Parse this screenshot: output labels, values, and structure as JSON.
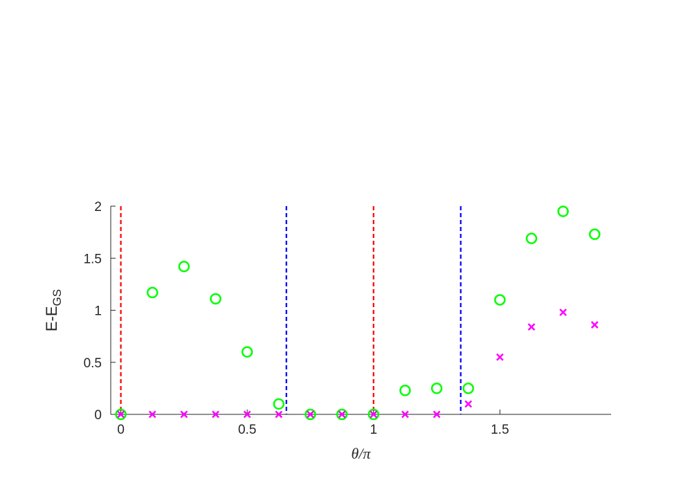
{
  "chart_data": {
    "type": "scatter",
    "xlabel": "θ/π",
    "ylabel": {
      "main": "E-E",
      "subscript": "GS"
    },
    "xlim": [
      -0.04,
      1.94
    ],
    "ylim": [
      0,
      2
    ],
    "xticks": [
      {
        "value": 0,
        "label": "0"
      },
      {
        "value": 0.5,
        "label": "0.5"
      },
      {
        "value": 1,
        "label": "1"
      },
      {
        "value": 1.5,
        "label": "1.5"
      }
    ],
    "yticks": [
      {
        "value": 0,
        "label": "0"
      },
      {
        "value": 0.5,
        "label": "0.5"
      },
      {
        "value": 1,
        "label": "1"
      },
      {
        "value": 1.5,
        "label": "1.5"
      },
      {
        "value": 2,
        "label": "2"
      }
    ],
    "grid": false,
    "series": [
      {
        "marker": "circle",
        "color": "#00ff00",
        "points": [
          [
            0,
            0
          ],
          [
            0.125,
            1.17
          ],
          [
            0.25,
            1.42
          ],
          [
            0.375,
            1.11
          ],
          [
            0.5,
            0.6
          ],
          [
            0.625,
            0.1
          ],
          [
            0.75,
            0
          ],
          [
            0.875,
            0
          ],
          [
            1.0,
            0
          ],
          [
            1.125,
            0.23
          ],
          [
            1.25,
            0.25
          ],
          [
            1.375,
            0.25
          ],
          [
            1.5,
            1.1
          ],
          [
            1.625,
            1.69
          ],
          [
            1.75,
            1.95
          ],
          [
            1.875,
            1.73
          ]
        ]
      },
      {
        "marker": "x",
        "color": "#ff00ff",
        "points": [
          [
            0,
            0
          ],
          [
            0.125,
            0
          ],
          [
            0.25,
            0
          ],
          [
            0.375,
            0
          ],
          [
            0.5,
            0
          ],
          [
            0.625,
            0
          ],
          [
            0.75,
            0
          ],
          [
            0.875,
            0
          ],
          [
            1.0,
            0
          ],
          [
            1.125,
            0
          ],
          [
            1.25,
            0
          ],
          [
            1.375,
            0.1
          ],
          [
            1.5,
            0.55
          ],
          [
            1.625,
            0.84
          ],
          [
            1.75,
            0.98
          ],
          [
            1.875,
            0.86
          ]
        ]
      }
    ],
    "vlines": [
      {
        "x": 0,
        "color": "#ff0000",
        "style": "dashed"
      },
      {
        "x": 0.655,
        "color": "#0000ff",
        "style": "dashed"
      },
      {
        "x": 1.0,
        "color": "#ff0000",
        "style": "dashed"
      },
      {
        "x": 1.345,
        "color": "#0000ff",
        "style": "dashed"
      }
    ],
    "axis_color": "#262626"
  }
}
